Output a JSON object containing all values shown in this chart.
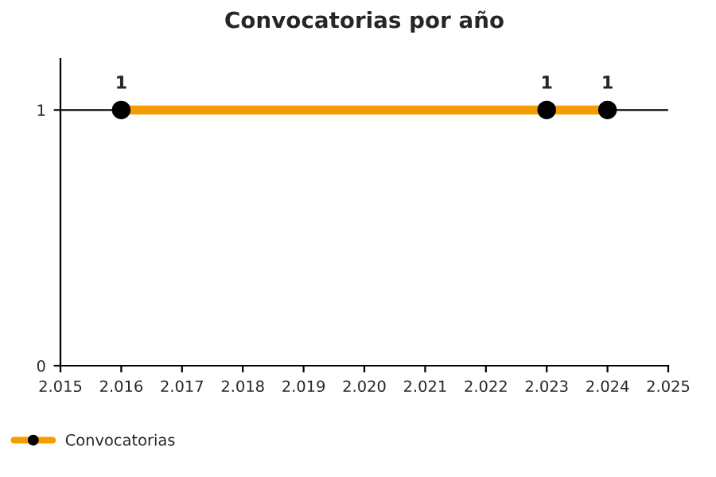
{
  "chart_data": {
    "type": "line",
    "title": "Convocatorias por año",
    "x": [
      2016,
      2023,
      2024
    ],
    "series": [
      {
        "name": "Convocatorias",
        "color": "#f59d00",
        "values": [
          1,
          1,
          1
        ]
      }
    ],
    "xlim": [
      2015,
      2025
    ],
    "xticks": [
      {
        "value": 2015,
        "label": "2.015"
      },
      {
        "value": 2016,
        "label": "2.016"
      },
      {
        "value": 2017,
        "label": "2.017"
      },
      {
        "value": 2018,
        "label": "2.018"
      },
      {
        "value": 2019,
        "label": "2.019"
      },
      {
        "value": 2020,
        "label": "2.020"
      },
      {
        "value": 2021,
        "label": "2.021"
      },
      {
        "value": 2022,
        "label": "2.022"
      },
      {
        "value": 2023,
        "label": "2.023"
      },
      {
        "value": 2024,
        "label": "2.024"
      },
      {
        "value": 2025,
        "label": "2.025"
      }
    ],
    "ylim": [
      0,
      1.2
    ],
    "yticks": [
      0,
      1
    ],
    "grid": "y",
    "legend": "bottom left",
    "marker": "circle",
    "line_style": "solid",
    "data_labels": true
  }
}
